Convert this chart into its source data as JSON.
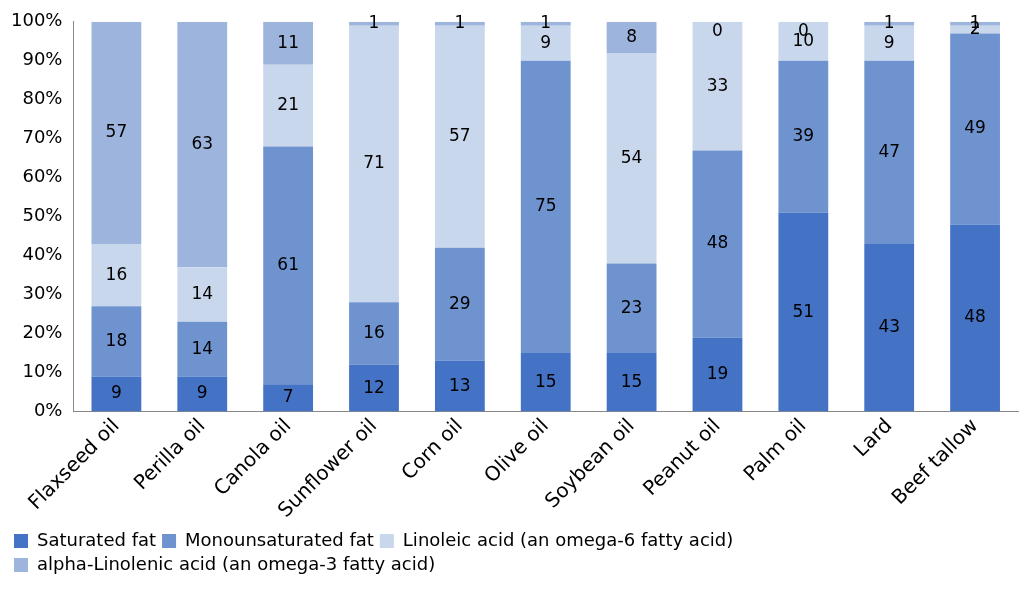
{
  "chart_data": {
    "type": "bar",
    "stacked": true,
    "data_labels": true,
    "legend": "bottom",
    "categories": [
      "Flaxseed oil",
      "Perilla oil",
      "Canola oil",
      "Sunflower oil",
      "Corn oil",
      "Olive oil",
      "Soybean oil",
      "Peanut oil",
      "Palm oil",
      "Lard",
      "Beef tallow"
    ],
    "series": [
      {
        "name": "Saturated fat",
        "color": "#4472c4",
        "values": [
          9,
          9,
          7,
          12,
          13,
          15,
          15,
          19,
          51,
          43,
          48
        ]
      },
      {
        "name": "Monounsaturated fat",
        "color": "#6f93cf",
        "values": [
          18,
          14,
          61,
          16,
          29,
          75,
          23,
          48,
          39,
          47,
          49
        ]
      },
      {
        "name": "Linoleic acid (an omega-6 fatty acid)",
        "color": "#c9d7ec",
        "values": [
          16,
          14,
          21,
          71,
          57,
          9,
          54,
          33,
          10,
          9,
          2
        ]
      },
      {
        "name": "alpha-Linolenic acid (an omega-3 fatty acid)",
        "color": "#9db5dd",
        "values": [
          57,
          63,
          11,
          1,
          1,
          1,
          8,
          0,
          0,
          1,
          1
        ]
      }
    ],
    "ylim": [
      0,
      100
    ],
    "yticks": [
      {
        "value": 0,
        "label": "0%"
      },
      {
        "value": 10,
        "label": "10%"
      },
      {
        "value": 20,
        "label": "20%"
      },
      {
        "value": 30,
        "label": "30%"
      },
      {
        "value": 40,
        "label": "40%"
      },
      {
        "value": 50,
        "label": "50%"
      },
      {
        "value": 60,
        "label": "60%"
      },
      {
        "value": 70,
        "label": "70%"
      },
      {
        "value": 80,
        "label": "80%"
      },
      {
        "value": 90,
        "label": "90%"
      },
      {
        "value": 100,
        "label": "100%"
      }
    ]
  }
}
